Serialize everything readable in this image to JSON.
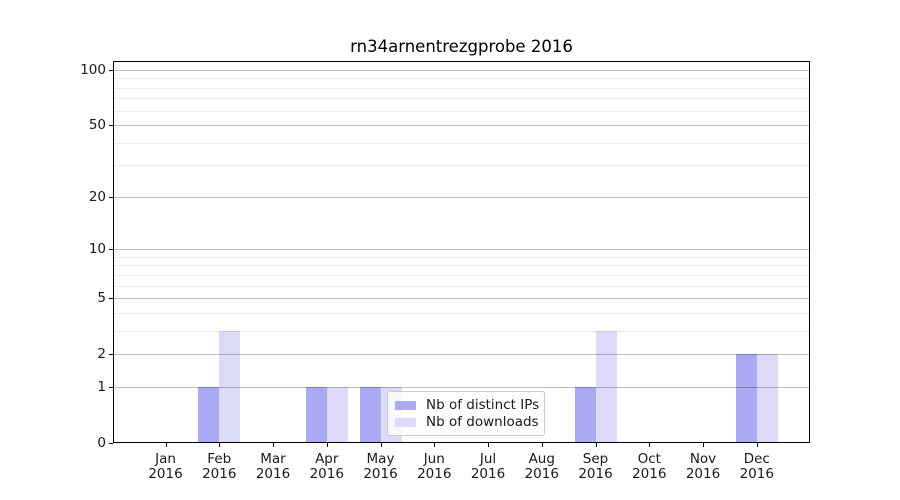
{
  "chart_data": {
    "type": "bar",
    "title": "rn34arnentrezgprobe 2016",
    "x_axis": {
      "months": [
        "Jan",
        "Feb",
        "Mar",
        "Apr",
        "May",
        "Jun",
        "Jul",
        "Aug",
        "Sep",
        "Oct",
        "Nov",
        "Dec"
      ],
      "year": "2016"
    },
    "y_axis": {
      "scale": "log1p",
      "ticks": [
        0,
        1,
        2,
        5,
        10,
        20,
        50,
        100
      ],
      "minor_gridlines": [
        3,
        4,
        6,
        7,
        8,
        9,
        30,
        40,
        60,
        70,
        80,
        90
      ],
      "ylim": [
        0,
        111.9
      ],
      "grid": "on"
    },
    "series": [
      {
        "name": "Nb of distinct IPs",
        "color": "#aaaaf4",
        "values": [
          0,
          1,
          0,
          1,
          1,
          0,
          0,
          0,
          1,
          0,
          0,
          2
        ]
      },
      {
        "name": "Nb of downloads",
        "color": "#dbdbf8",
        "values": [
          0,
          3,
          0,
          1,
          1,
          0,
          0,
          0,
          3,
          0,
          0,
          2
        ]
      }
    ],
    "legend": {
      "position": "inside-bottom-center",
      "entries": [
        "Nb of distinct IPs",
        "Nb of downloads"
      ]
    },
    "colors": {
      "bar_distinct_ips": "#aaaaf4",
      "bar_downloads": "#dbdbf8",
      "spine": "#000000",
      "grid_major": "#bfbfbf",
      "grid_minor": "#ebebeb",
      "text": "#1a1a1a",
      "background": "#ffffff"
    }
  }
}
